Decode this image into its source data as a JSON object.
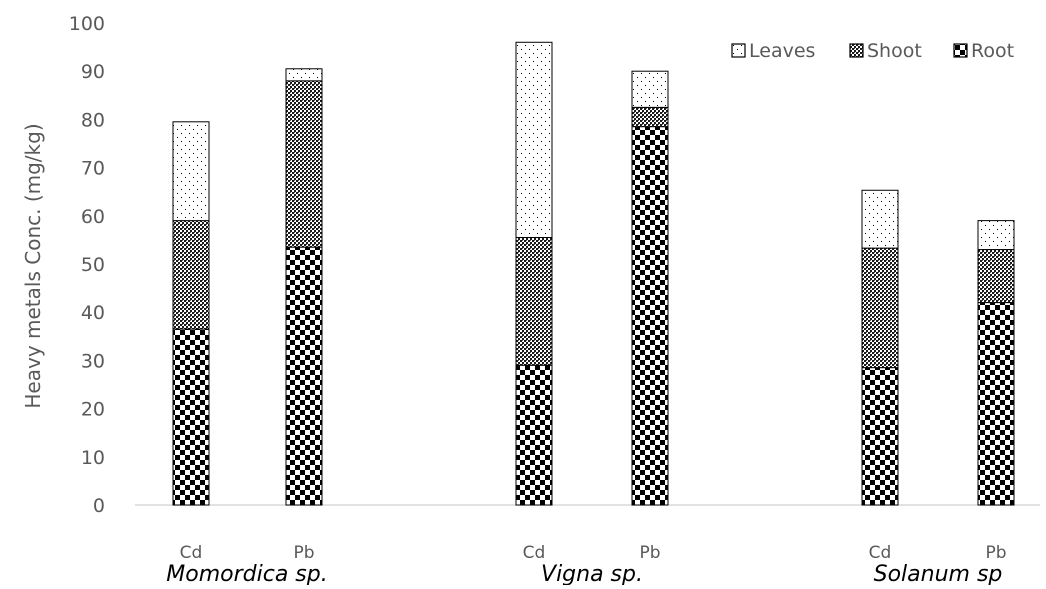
{
  "chart_data": {
    "type": "bar",
    "stacked": true,
    "title": "",
    "xlabel": "",
    "ylabel": "Heavy metals Conc. (mg/kg)",
    "ylim": [
      0,
      100
    ],
    "yticks": [
      0,
      10,
      20,
      30,
      40,
      50,
      60,
      70,
      80,
      90,
      100
    ],
    "grid": false,
    "legend_position": "top-right",
    "groups": [
      {
        "name": "Momordica sp.",
        "categories": [
          "Cd",
          "Pb"
        ]
      },
      {
        "name": "Vigna sp.",
        "categories": [
          "Cd",
          "Pb"
        ]
      },
      {
        "name": "Solanum sp",
        "categories": [
          "Cd",
          "Pb"
        ]
      }
    ],
    "categories": [
      "Cd",
      "Pb",
      "Cd",
      "Pb",
      "Cd",
      "Pb"
    ],
    "series": [
      {
        "name": "Root",
        "pattern": "checker",
        "values": [
          36.5,
          53.5,
          29,
          78.5,
          28.5,
          42
        ]
      },
      {
        "name": "Shoot",
        "pattern": "crosshatch",
        "values": [
          22.5,
          34.5,
          26.5,
          4,
          24.8,
          11
        ]
      },
      {
        "name": "Leaves",
        "pattern": "dots",
        "values": [
          20.5,
          2.5,
          40.5,
          7.5,
          12,
          6
        ]
      }
    ],
    "legend_order": [
      "Leaves",
      "Shoot",
      "Root"
    ],
    "colors": {
      "axis": "#d9d9d9",
      "text": "#595959",
      "bar_outline": "#000000"
    }
  }
}
